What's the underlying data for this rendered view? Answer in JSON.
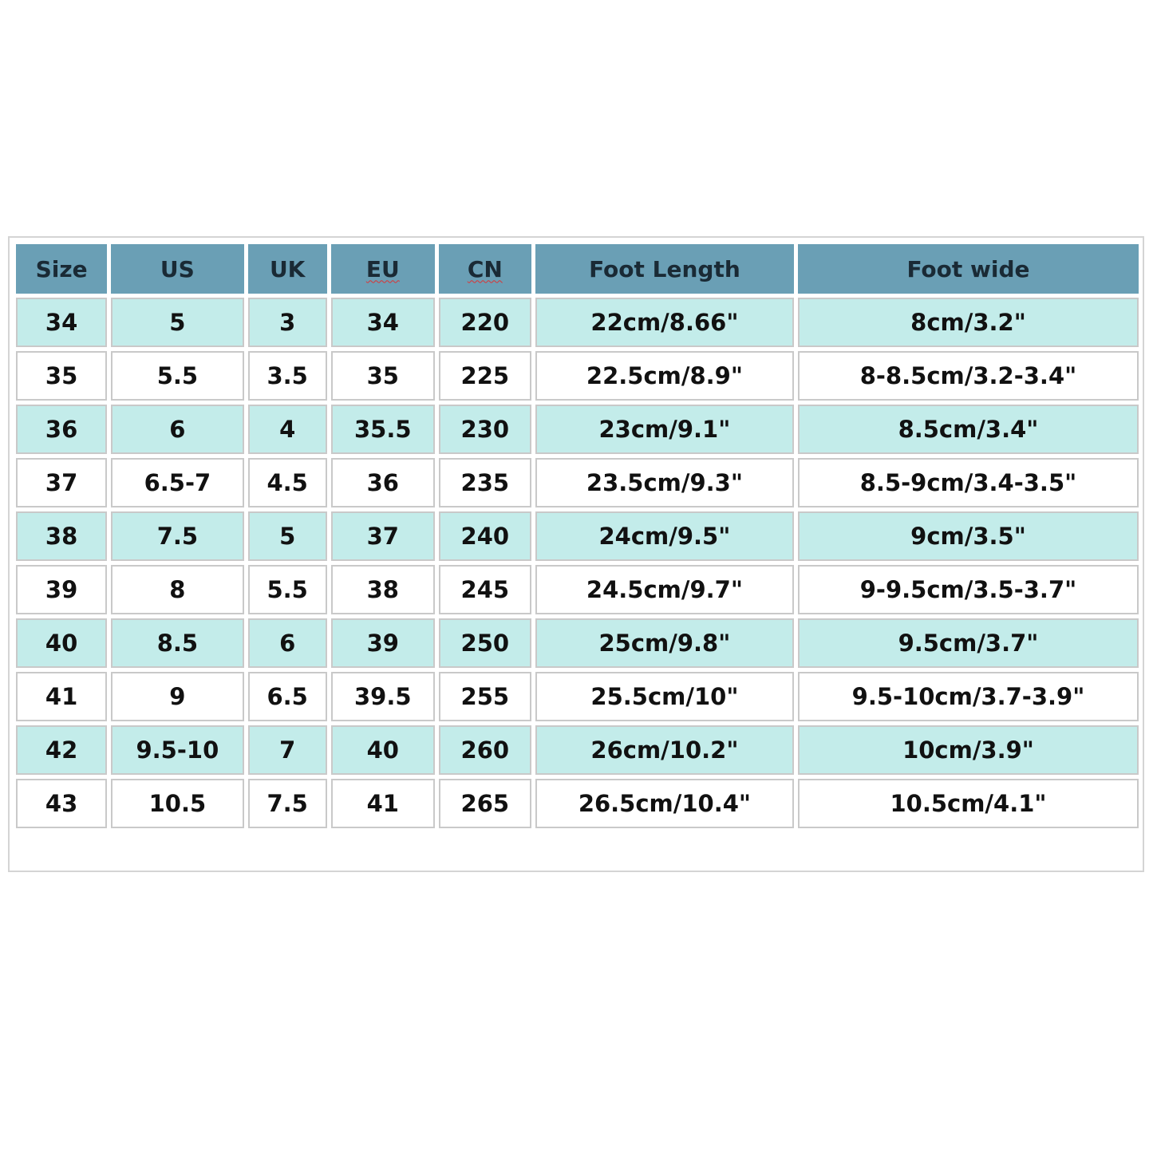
{
  "colors": {
    "header": "#6a9fb5",
    "alt_row": "#c3ecea",
    "row": "#ffffff"
  },
  "table": {
    "headers": [
      "Size",
      "US",
      "UK",
      "EU",
      "CN",
      "Foot Length",
      "Foot wide"
    ],
    "rows": [
      [
        "34",
        "5",
        "3",
        "34",
        "220",
        "22cm/8.66\"",
        "8cm/3.2\""
      ],
      [
        "35",
        "5.5",
        "3.5",
        "35",
        "225",
        "22.5cm/8.9\"",
        "8-8.5cm/3.2-3.4\""
      ],
      [
        "36",
        "6",
        "4",
        "35.5",
        "230",
        "23cm/9.1\"",
        "8.5cm/3.4\""
      ],
      [
        "37",
        "6.5-7",
        "4.5",
        "36",
        "235",
        "23.5cm/9.3\"",
        "8.5-9cm/3.4-3.5\""
      ],
      [
        "38",
        "7.5",
        "5",
        "37",
        "240",
        "24cm/9.5\"",
        "9cm/3.5\""
      ],
      [
        "39",
        "8",
        "5.5",
        "38",
        "245",
        "24.5cm/9.7\"",
        "9-9.5cm/3.5-3.7\""
      ],
      [
        "40",
        "8.5",
        "6",
        "39",
        "250",
        "25cm/9.8\"",
        "9.5cm/3.7\""
      ],
      [
        "41",
        "9",
        "6.5",
        "39.5",
        "255",
        "25.5cm/10\"",
        "9.5-10cm/3.7-3.9\""
      ],
      [
        "42",
        "9.5-10",
        "7",
        "40",
        "260",
        "26cm/10.2\"",
        "10cm/3.9\""
      ],
      [
        "43",
        "10.5",
        "7.5",
        "41",
        "265",
        "26.5cm/10.4\"",
        "10.5cm/4.1\""
      ]
    ]
  }
}
